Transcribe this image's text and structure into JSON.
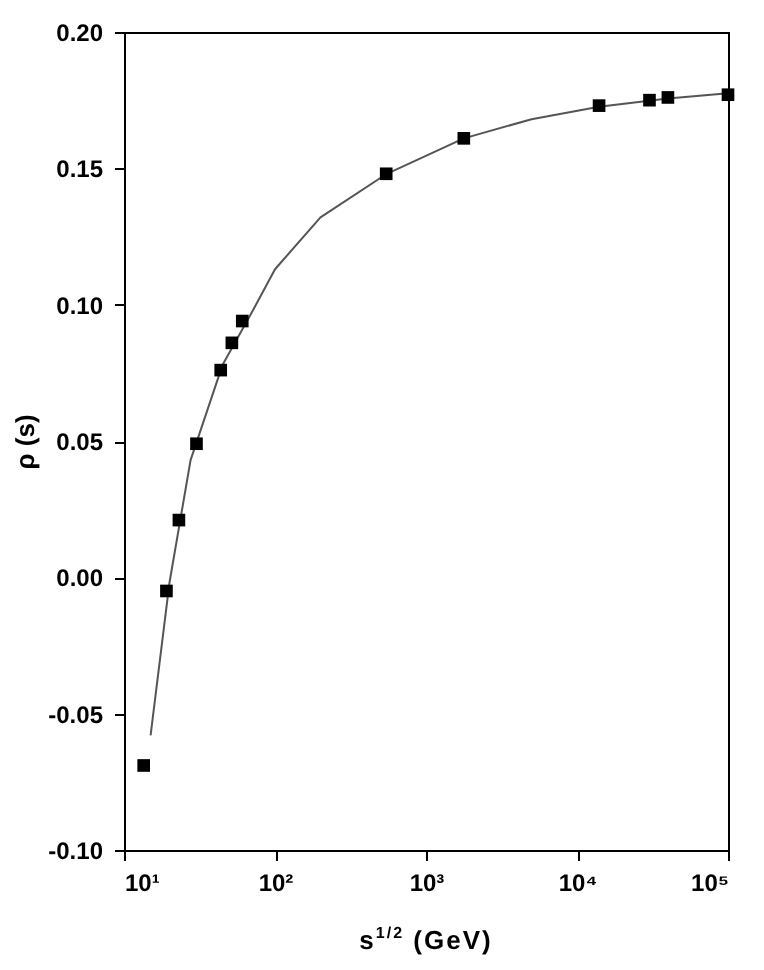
{
  "chart_data": {
    "type": "scatter",
    "xlabel": "s$^{1/2}$ (GeV)",
    "ylabel": "ρ (s)",
    "log": "x",
    "xlim": [
      10,
      100000
    ],
    "ylim": [
      -0.1,
      0.2
    ],
    "xticks": [
      {
        "value": 10,
        "label": "10¹"
      },
      {
        "value": 100,
        "label": "10²"
      },
      {
        "value": 1000,
        "label": "10³"
      },
      {
        "value": 10000,
        "label": "10⁴"
      },
      {
        "value": 100000,
        "label": "10⁵"
      }
    ],
    "yticks": [
      {
        "value": -0.1,
        "label": "-0.10"
      },
      {
        "value": -0.05,
        "label": "-0.05"
      },
      {
        "value": 0,
        "label": "0.00"
      },
      {
        "value": 0.05,
        "label": "0.05"
      },
      {
        "value": 0.1,
        "label": "0.10"
      },
      {
        "value": 0.15,
        "label": "0.15"
      },
      {
        "value": 0.2,
        "label": "0.20"
      }
    ],
    "series": [
      {
        "type": "line",
        "marker": "none",
        "color": "#555555",
        "x": [
          15,
          20,
          27.6,
          45,
          70,
          100,
          200,
          550,
          1780,
          5000,
          14000,
          40000,
          100000
        ],
        "values": [
          -0.058,
          -0.002,
          0.043,
          0.078,
          0.097,
          0.113,
          0.132,
          0.148,
          0.161,
          0.168,
          0.1726,
          0.1756,
          0.1775
        ]
      },
      {
        "marker": "square",
        "color": "#000000",
        "x": [
          13.5,
          19.1,
          23.1,
          30.2,
          43.7,
          51.8,
          60.7,
          545,
          1780,
          14000,
          30200,
          40000,
          100000
        ],
        "values": [
          -0.069,
          -0.005,
          0.021,
          0.049,
          0.076,
          0.086,
          0.094,
          0.148,
          0.161,
          0.173,
          0.175,
          0.176,
          0.177
        ]
      }
    ]
  }
}
